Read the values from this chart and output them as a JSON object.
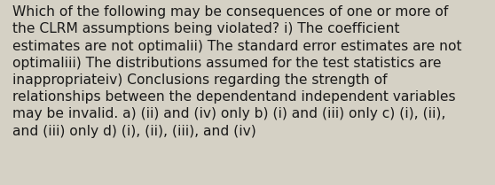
{
  "lines": [
    "Which of the following may be consequences of one or more of",
    "the CLRM assumptions being violated? i) The coefficient",
    "estimates are not optimalii) The standard error estimates are not",
    "optimaliii) The distributions assumed for the test statistics are",
    "inappropriateiv) Conclusions regarding the strength of",
    "relationships between the dependentand independent variables",
    "may be invalid. a) (ii) and (iv) only b) (i) and (iii) only c) (i), (ii),",
    "and (iii) only d) (i), (ii), (iii), and (iv)"
  ],
  "background_color": "#d5d1c5",
  "text_color": "#1a1a1a",
  "font_size": 11.2,
  "fig_width": 5.58,
  "fig_height": 2.09,
  "dpi": 100
}
